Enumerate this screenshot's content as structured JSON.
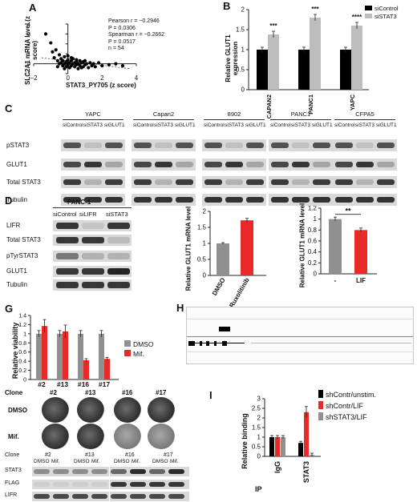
{
  "colors": {
    "dark": "#000000",
    "gray": "#909090",
    "red": "#e82a2a",
    "lightgray": "#bdbdbd"
  },
  "panels": {
    "A": "A",
    "B": "B",
    "C": "C",
    "D": "D",
    "E": "E",
    "F": "F",
    "G": "G",
    "H": "H",
    "I": "I"
  },
  "panel_a": {
    "ylabel": "SLC2A1 mRNA level (z score)",
    "xlabel": "STAT3_PY705 (z score)",
    "stats": [
      "Pearson r = −0.2946",
      "P = 0.0306",
      "Spearman r = −0.2662",
      "P = 0.0517",
      "n = 54"
    ],
    "xticks": [
      "−2",
      "0",
      "2",
      "4"
    ],
    "yticks": [
      "4",
      "3",
      "2",
      "1",
      "0",
      "−1"
    ]
  },
  "panel_b": {
    "ylabel": "Relative GLUT1 expression",
    "legend": [
      "siControl",
      "siSTAT3"
    ],
    "categories": [
      "CAPAN2",
      "PANC1",
      "YAPC"
    ],
    "sig": [
      "***",
      "***",
      "****"
    ],
    "yticks": [
      "0",
      "0.5",
      "1",
      "1.5",
      "2"
    ]
  },
  "panel_c": {
    "cell_lines": [
      "YAPC",
      "Capan2",
      "8902",
      "PANC1",
      "CFPA5"
    ],
    "conditions": [
      "siControl",
      "siSTAT3",
      "siGLUT1"
    ],
    "rows": [
      "pSTAT3",
      "GLUT1",
      "Total STAT3",
      "Tubulin"
    ]
  },
  "panel_d": {
    "title": "PANC-1",
    "conditions": [
      "siControl",
      "siLIFR",
      "siSTAT3"
    ],
    "rows": [
      "LIFR",
      "Total STAT3",
      "pTyrSTAT3",
      "GLUT1",
      "Tubulin"
    ]
  },
  "panel_e": {
    "ylabel": "Relative GLUT1 mRNA level",
    "categories": [
      "DMSO",
      "Ruxolitinib"
    ],
    "yticks": [
      "0",
      "0.5",
      "1",
      "1.5",
      "2"
    ]
  },
  "panel_f": {
    "ylabel": "Relative GLUT1 mRNA level",
    "categories": [
      "-",
      "LIF"
    ],
    "sig": "**",
    "yticks": [
      "0",
      "0.2",
      "0.4",
      "0.6",
      "0.8",
      "1",
      "1.2"
    ]
  },
  "panel_g": {
    "ylabel": "Relative viability",
    "legend": [
      "DMSO",
      "Mif."
    ],
    "clones": [
      "#2",
      "#13",
      "#16",
      "#17"
    ],
    "yticks": [
      "0",
      "0.2",
      "0.4",
      "0.6",
      "0.8",
      "1",
      "1.2",
      "1.4"
    ],
    "clone_label": "Clone",
    "dish_rows": [
      "DMSO",
      "Mif."
    ],
    "blot_conditions": [
      "DMSO",
      "Mif."
    ],
    "blot_rows": [
      "STAT3",
      "FLAG",
      "LIFR"
    ]
  },
  "panel_i": {
    "ylabel": "Relative binding",
    "legend": [
      "shContr/unstim.",
      "shContr/LIF",
      "shSTAT3/LIF"
    ],
    "groups": [
      "IgG",
      "STAT3"
    ],
    "ip_label": "IP",
    "yticks": [
      "0",
      "0.5",
      "1",
      "1.5",
      "2",
      "2.5",
      "3"
    ]
  },
  "chart_data": [
    {
      "panel": "A",
      "type": "scatter",
      "xlabel": "STAT3_PY705 (z score)",
      "ylabel": "SLC2A1 mRNA level (z score)",
      "xlim": [
        -2,
        4
      ],
      "ylim": [
        -1,
        4
      ],
      "points": [
        [
          -1.3,
          3.0
        ],
        [
          -1.0,
          2.1
        ],
        [
          -0.9,
          1.2
        ],
        [
          -0.8,
          0.6
        ],
        [
          -0.7,
          1.4
        ],
        [
          -0.6,
          0.3
        ],
        [
          -0.5,
          0.9
        ],
        [
          -0.4,
          0.1
        ],
        [
          -0.4,
          0.5
        ],
        [
          -0.3,
          -0.2
        ],
        [
          -0.3,
          0.3
        ],
        [
          -0.2,
          0.7
        ],
        [
          -0.2,
          0.0
        ],
        [
          -0.1,
          -0.3
        ],
        [
          -0.1,
          0.2
        ],
        [
          0.0,
          0.4
        ],
        [
          0.0,
          -0.1
        ],
        [
          0.1,
          0.1
        ],
        [
          0.1,
          -0.4
        ],
        [
          0.2,
          0.3
        ],
        [
          0.2,
          -0.2
        ],
        [
          0.3,
          0.0
        ],
        [
          0.3,
          0.5
        ],
        [
          0.4,
          -0.3
        ],
        [
          0.4,
          0.1
        ],
        [
          0.5,
          0.2
        ],
        [
          0.5,
          -0.1
        ],
        [
          0.6,
          0.0
        ],
        [
          0.6,
          -0.5
        ],
        [
          0.7,
          0.3
        ],
        [
          0.7,
          -0.2
        ],
        [
          0.8,
          0.1
        ],
        [
          0.9,
          -0.3
        ],
        [
          0.9,
          0.2
        ],
        [
          1.0,
          -0.1
        ],
        [
          1.1,
          0.0
        ],
        [
          1.2,
          -0.4
        ],
        [
          1.3,
          0.1
        ],
        [
          1.4,
          -0.2
        ],
        [
          1.5,
          0.0
        ],
        [
          1.6,
          -0.3
        ],
        [
          1.8,
          0.1
        ],
        [
          2.0,
          -0.2
        ],
        [
          2.4,
          -0.1
        ],
        [
          2.8,
          0.0
        ],
        [
          3.2,
          -0.2
        ],
        [
          -0.6,
          -0.3
        ],
        [
          -0.2,
          -0.5
        ],
        [
          0.2,
          0.6
        ],
        [
          0.5,
          0.4
        ],
        [
          0.8,
          -0.4
        ],
        [
          1.0,
          0.3
        ],
        [
          -0.5,
          0.0
        ],
        [
          0.0,
          0.8
        ]
      ]
    },
    {
      "panel": "B",
      "type": "bar",
      "ylabel": "Relative GLUT1 expression",
      "categories": [
        "CAPAN2",
        "PANC1",
        "YAPC"
      ],
      "ylim": [
        0,
        2
      ],
      "series": [
        {
          "name": "siControl",
          "values": [
            1.0,
            1.0,
            1.0
          ]
        },
        {
          "name": "siSTAT3",
          "values": [
            1.38,
            1.8,
            1.6
          ]
        }
      ]
    },
    {
      "panel": "E",
      "type": "bar",
      "ylabel": "Relative GLUT1 mRNA level",
      "categories": [
        "DMSO",
        "Ruxolitinib"
      ],
      "ylim": [
        0,
        2
      ],
      "values": [
        1.0,
        1.72
      ]
    },
    {
      "panel": "F",
      "type": "bar",
      "ylabel": "Relative GLUT1 mRNA level",
      "categories": [
        "-",
        "LIF"
      ],
      "ylim": [
        0,
        1.2
      ],
      "values": [
        1.0,
        0.8
      ]
    },
    {
      "panel": "G",
      "type": "bar",
      "ylabel": "Relative viability",
      "categories": [
        "#2",
        "#13",
        "#16",
        "#17"
      ],
      "ylim": [
        0,
        1.4
      ],
      "series": [
        {
          "name": "DMSO",
          "values": [
            1.0,
            1.0,
            1.0,
            1.0
          ]
        },
        {
          "name": "Mif.",
          "values": [
            1.17,
            1.05,
            0.42,
            0.45
          ]
        }
      ]
    },
    {
      "panel": "I",
      "type": "bar",
      "ylabel": "Relative binding",
      "categories": [
        "IgG",
        "STAT3"
      ],
      "ylim": [
        0,
        3
      ],
      "series": [
        {
          "name": "shContr/unstim.",
          "values": [
            1.0,
            0.7
          ]
        },
        {
          "name": "shContr/LIF",
          "values": [
            1.0,
            2.3
          ]
        },
        {
          "name": "shSTAT3/LIF",
          "values": [
            1.0,
            0.08
          ]
        }
      ]
    }
  ]
}
